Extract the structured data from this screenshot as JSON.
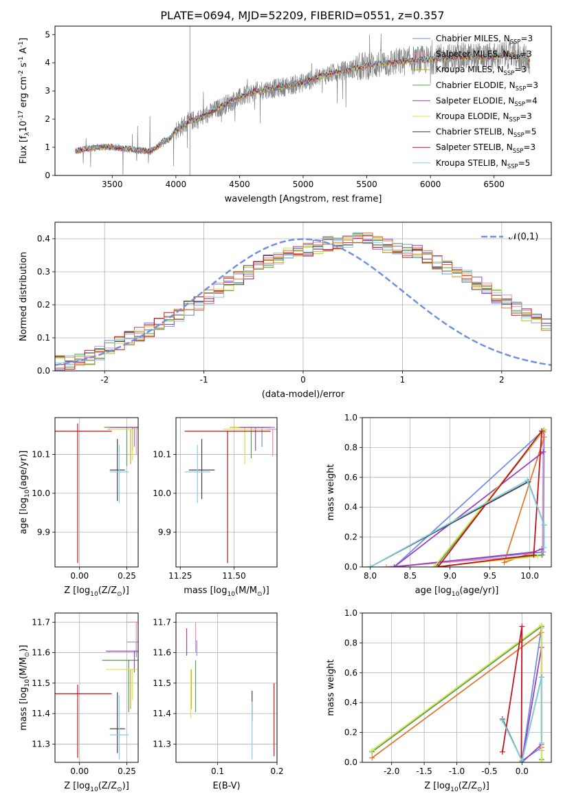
{
  "title": "PLATE=0694, MJD=52209, FIBERID=0551, z=0.357",
  "colors": {
    "Chabrier MILES": "#6f8fe0",
    "Salpeter MILES": "#f08ab0",
    "Kroupa MILES": "#c8b400",
    "Chabrier ELODIE": "#5a9a5a",
    "Salpeter ELODIE": "#9b40c0",
    "Kroupa ELODIE": "#d8e64a",
    "Chabrier STELIB": "#404040",
    "Salpeter STELIB": "#c01020",
    "Kroupa STELIB": "#7fd0e0",
    "orange": "#e07830",
    "gray": "#808080",
    "grid": "#b0b0b0"
  },
  "chart_data": [
    {
      "id": "spectrum",
      "type": "line",
      "xlabel": "wavelength [Angstrom, rest frame]",
      "ylabel": "Flux [f$_\\lambda$10$^{-17}$ erg cm$^{-2}$ s$^{-1}$ A$^{-1}$]",
      "xlim": [
        3050,
        6950
      ],
      "ylim": [
        0,
        5.3
      ],
      "xticks": [
        3500,
        4000,
        4500,
        5000,
        5500,
        6000,
        6500
      ],
      "yticks": [
        0,
        1,
        2,
        3,
        4,
        5
      ],
      "grid": false,
      "legend_position": "upper right",
      "legend": [
        {
          "label": "Chabrier MILES, N$_{SSP}$=3",
          "color_key": "Chabrier MILES"
        },
        {
          "label": "Salpeter MILES, N$_{SSP}$=3",
          "color_key": "Salpeter MILES"
        },
        {
          "label": "Kroupa MILES, N$_{SSP}$=3",
          "color_key": "Kroupa MILES"
        },
        {
          "label": "Chabrier ELODIE, N$_{SSP}$=3",
          "color_key": "Chabrier ELODIE"
        },
        {
          "label": "Salpeter ELODIE, N$_{SSP}$=4",
          "color_key": "Salpeter ELODIE"
        },
        {
          "label": "Kroupa ELODIE, N$_{SSP}$=3",
          "color_key": "Kroupa ELODIE"
        },
        {
          "label": "Chabrier STELIB, N$_{SSP}$=5",
          "color_key": "Chabrier STELIB"
        },
        {
          "label": "Salpeter STELIB, N$_{SSP}$=3",
          "color_key": "Salpeter STELIB"
        },
        {
          "label": "Kroupa STELIB, N$_{SSP}$=5",
          "color_key": "Kroupa STELIB"
        }
      ],
      "continuum": {
        "x": [
          3210,
          3300,
          3400,
          3500,
          3600,
          3700,
          3800,
          3850,
          3900,
          3950,
          4000,
          4100,
          4200,
          4300,
          4400,
          4500,
          4600,
          4700,
          4800,
          4900,
          5000,
          5100,
          5200,
          5300,
          5400,
          5500,
          5600,
          5700,
          5800,
          5900,
          6000,
          6100,
          6200,
          6300,
          6400,
          6500,
          6600,
          6700,
          6780
        ],
        "y": [
          0.85,
          0.95,
          1.0,
          1.0,
          0.95,
          0.9,
          0.85,
          1.0,
          1.2,
          1.3,
          1.6,
          1.9,
          2.05,
          2.3,
          2.55,
          2.75,
          2.95,
          3.05,
          3.1,
          3.2,
          3.3,
          3.45,
          3.6,
          3.7,
          3.8,
          3.9,
          3.95,
          4.0,
          4.05,
          4.1,
          4.1,
          4.15,
          4.2,
          4.2,
          4.2,
          4.2,
          4.3,
          4.2,
          4.1
        ]
      }
    },
    {
      "id": "residuals",
      "type": "histogram",
      "xlabel": "(data-model)/error",
      "ylabel": "Normed distribution",
      "xlim": [
        -2.5,
        2.5
      ],
      "ylim": [
        0,
        0.45
      ],
      "xticks": [
        -2,
        -1,
        0,
        1,
        2
      ],
      "yticks": [
        0.0,
        0.1,
        0.2,
        0.3,
        0.4
      ],
      "grid": true,
      "legend_position": "upper right",
      "legend": [
        {
          "label": "$\\mathcal{N}(0,1)$",
          "color_key": "Chabrier MILES"
        }
      ],
      "bin_edges_start": -2.5,
      "bin_width": 0.1,
      "mean_hist": [
        0.025,
        0.025,
        0.03,
        0.04,
        0.055,
        0.07,
        0.085,
        0.1,
        0.11,
        0.125,
        0.14,
        0.155,
        0.17,
        0.19,
        0.205,
        0.225,
        0.245,
        0.265,
        0.28,
        0.3,
        0.315,
        0.33,
        0.345,
        0.355,
        0.36,
        0.37,
        0.375,
        0.385,
        0.39,
        0.395,
        0.4,
        0.395,
        0.39,
        0.38,
        0.375,
        0.365,
        0.36,
        0.345,
        0.33,
        0.315,
        0.3,
        0.285,
        0.265,
        0.245,
        0.225,
        0.21,
        0.19,
        0.17,
        0.155,
        0.14,
        0.125,
        0.11,
        0.095,
        0.085,
        0.075,
        0.065,
        0.058,
        0.05,
        0.045,
        0.04
      ]
    },
    {
      "id": "age_vs_Z",
      "type": "errorbar",
      "xlabel": "Z [log$_{10}$(Z/Z$_\\odot$)]",
      "ylabel": "age  [log$_{10}$(age/yr)]",
      "xlim": [
        -0.13,
        0.31
      ],
      "ylim": [
        9.81,
        10.195
      ],
      "xticks": [
        0.0,
        0.25
      ],
      "xticklabels": [
        "0.00",
        "0.25"
      ],
      "yticks": [
        9.9,
        10.0,
        10.1
      ],
      "grid": true,
      "points": [
        {
          "color_key": "Chabrier MILES",
          "x": 0.29,
          "y": 10.17,
          "xerr": 0.1,
          "yerr": [
            0.05,
            0.0
          ]
        },
        {
          "color_key": "Salpeter MILES",
          "x": 0.3,
          "y": 10.17,
          "xerr": 0.12,
          "yerr": [
            0.07,
            0.0
          ]
        },
        {
          "color_key": "Kroupa MILES",
          "x": 0.27,
          "y": 10.165,
          "xerr": 0.12,
          "yerr": [
            0.09,
            0.0
          ]
        },
        {
          "color_key": "Chabrier ELODIE",
          "x": 0.25,
          "y": 10.17,
          "xerr": 0.12,
          "yerr": [
            0.1,
            0.0
          ]
        },
        {
          "color_key": "Salpeter ELODIE",
          "x": 0.28,
          "y": 10.17,
          "xerr": 0.12,
          "yerr": [
            0.06,
            0.0
          ]
        },
        {
          "color_key": "Kroupa ELODIE",
          "x": 0.28,
          "y": 10.165,
          "xerr": 0.12,
          "yerr": [
            0.08,
            0.0
          ]
        },
        {
          "color_key": "Chabrier STELIB",
          "x": 0.2,
          "y": 10.06,
          "xerr": 0.04,
          "yerr": [
            0.08,
            0.08
          ]
        },
        {
          "color_key": "Salpeter STELIB",
          "x": -0.01,
          "y": 10.16,
          "xerr": 0.18,
          "yerr": [
            0.34,
            0.02
          ]
        },
        {
          "color_key": "Kroupa STELIB",
          "x": 0.21,
          "y": 10.055,
          "xerr": 0.05,
          "yerr": [
            0.08,
            0.07
          ]
        }
      ]
    },
    {
      "id": "age_vs_mass",
      "type": "errorbar",
      "xlabel": "mass [log$_{10}$(M/M$_\\odot$)]",
      "ylabel": "",
      "xlim": [
        11.23,
        11.7
      ],
      "ylim": [
        9.81,
        10.195
      ],
      "xticks": [
        11.25,
        11.5
      ],
      "xticklabels": [
        "11.25",
        "11.50"
      ],
      "yticks": [
        9.9,
        10.0,
        10.1
      ],
      "grid": true,
      "points": [
        {
          "color_key": "Chabrier MILES",
          "x": 11.63,
          "y": 10.17,
          "xerr": 0.06,
          "yerr": [
            0.05,
            0.0
          ]
        },
        {
          "color_key": "Salpeter MILES",
          "x": 11.68,
          "y": 10.165,
          "xerr": 0.1,
          "yerr": [
            0.07,
            0.0
          ]
        },
        {
          "color_key": "Kroupa MILES",
          "x": 11.55,
          "y": 10.17,
          "xerr": 0.07,
          "yerr": [
            0.07,
            0.0
          ]
        },
        {
          "color_key": "Chabrier ELODIE",
          "x": 11.58,
          "y": 10.17,
          "xerr": 0.06,
          "yerr": [
            0.08,
            0.0
          ]
        },
        {
          "color_key": "Salpeter ELODIE",
          "x": 11.6,
          "y": 10.17,
          "xerr": 0.07,
          "yerr": [
            0.06,
            0.0
          ]
        },
        {
          "color_key": "Kroupa ELODIE",
          "x": 11.55,
          "y": 10.165,
          "xerr": 0.1,
          "yerr": [
            0.09,
            0.0
          ]
        },
        {
          "color_key": "Chabrier STELIB",
          "x": 11.35,
          "y": 10.06,
          "xerr": 0.06,
          "yerr": [
            0.075,
            0.08
          ]
        },
        {
          "color_key": "Salpeter STELIB",
          "x": 11.47,
          "y": 10.16,
          "xerr": 0.2,
          "yerr": [
            0.34,
            0.0
          ]
        },
        {
          "color_key": "Kroupa STELIB",
          "x": 11.33,
          "y": 10.055,
          "xerr": 0.06,
          "yerr": [
            0.08,
            0.07
          ]
        }
      ]
    },
    {
      "id": "weight_vs_age",
      "type": "line",
      "xlabel": "age  [log$_{10}$(age/yr)]",
      "ylabel": "mass weight",
      "xlim": [
        7.9,
        10.27
      ],
      "ylim": [
        0,
        1.0
      ],
      "xticks": [
        8.0,
        8.5,
        9.0,
        9.5,
        10.0
      ],
      "yticks": [
        0.0,
        0.2,
        0.4,
        0.6,
        0.8,
        1.0
      ],
      "grid": true,
      "series": [
        {
          "color_key": "Chabrier MILES",
          "x": [
            10.18,
            10.17,
            8.3,
            10.18
          ],
          "y": [
            0.92,
            0.1,
            0.0,
            0.92
          ]
        },
        {
          "color_key": "Salpeter MILES",
          "x": [
            10.17,
            10.16,
            8.2
          ],
          "y": [
            0.9,
            0.08,
            0.0
          ]
        },
        {
          "color_key": "orange",
          "x": [
            10.18,
            9.68,
            10.05
          ],
          "y": [
            0.87,
            0.03,
            0.1
          ]
        },
        {
          "color_key": "Chabrier ELODIE",
          "x": [
            10.17,
            8.82,
            10.15
          ],
          "y": [
            0.91,
            0.0,
            0.08
          ]
        },
        {
          "color_key": "Salpeter ELODIE",
          "x": [
            10.17,
            8.3,
            10.05,
            10.15
          ],
          "y": [
            0.77,
            0.0,
            0.1,
            0.12
          ]
        },
        {
          "color_key": "Kroupa ELODIE",
          "x": [
            10.18,
            8.8,
            10.1
          ],
          "y": [
            0.92,
            0.0,
            0.07
          ]
        },
        {
          "color_key": "Chabrier STELIB",
          "x": [
            8.0,
            9.98,
            10.18
          ],
          "y": [
            0.0,
            0.57,
            0.28
          ]
        },
        {
          "color_key": "Salpeter STELIB",
          "x": [
            10.15,
            10.05,
            8.85,
            10.15
          ],
          "y": [
            0.91,
            0.08,
            0.0,
            0.91
          ]
        },
        {
          "color_key": "Kroupa STELIB",
          "x": [
            8.0,
            9.97,
            10.18,
            10.18
          ],
          "y": [
            0.0,
            0.58,
            0.28,
            0.13
          ]
        }
      ]
    },
    {
      "id": "mass_vs_Z",
      "type": "errorbar",
      "xlabel": "Z [log$_{10}$(Z/Z$_\\odot$)]",
      "ylabel": "mass [log$_{10}$(M/M$_\\odot$)]",
      "xlim": [
        -0.13,
        0.31
      ],
      "ylim": [
        11.24,
        11.73
      ],
      "xticks": [
        0.0,
        0.25
      ],
      "xticklabels": [
        "0.00",
        "0.25"
      ],
      "yticks": [
        11.3,
        11.4,
        11.5,
        11.6,
        11.7
      ],
      "grid": true,
      "points": [
        {
          "color_key": "Chabrier MILES",
          "x": 0.3,
          "y": 11.635,
          "xerr": 0.05,
          "yerr": [
            0.05,
            0.0
          ]
        },
        {
          "color_key": "Salpeter MILES",
          "x": 0.3,
          "y": 11.7,
          "xerr": 0.05,
          "yerr": [
            0.1,
            0.0
          ]
        },
        {
          "color_key": "Kroupa MILES",
          "x": 0.27,
          "y": 11.545,
          "xerr": 0.03,
          "yerr": [
            0.13,
            0.0
          ]
        },
        {
          "color_key": "Chabrier ELODIE",
          "x": 0.26,
          "y": 11.575,
          "xerr": 0.14,
          "yerr": [
            0.17,
            0.0
          ]
        },
        {
          "color_key": "Salpeter ELODIE",
          "x": 0.29,
          "y": 11.605,
          "xerr": 0.15,
          "yerr": [
            0.07,
            0.0
          ]
        },
        {
          "color_key": "Kroupa ELODIE",
          "x": 0.28,
          "y": 11.545,
          "xerr": 0.14,
          "yerr": [
            0.1,
            0.0
          ]
        },
        {
          "color_key": "Chabrier STELIB",
          "x": 0.2,
          "y": 11.35,
          "xerr": 0.04,
          "yerr": [
            0.08,
            0.12
          ]
        },
        {
          "color_key": "Salpeter STELIB",
          "x": -0.01,
          "y": 11.465,
          "xerr": 0.18,
          "yerr": [
            0.21,
            0.03
          ]
        },
        {
          "color_key": "Kroupa STELIB",
          "x": 0.21,
          "y": 11.33,
          "xerr": 0.05,
          "yerr": [
            0.08,
            0.13
          ]
        }
      ]
    },
    {
      "id": "mass_vs_EBV",
      "type": "errorbar",
      "xlabel": "E(B-V)",
      "ylabel": "",
      "xlim": [
        0.03,
        0.2
      ],
      "ylim": [
        11.24,
        11.73
      ],
      "xticks": [
        0.1,
        0.2
      ],
      "xticklabels": [
        "0.1",
        "0.2"
      ],
      "yticks": [
        11.3,
        11.4,
        11.5,
        11.6,
        11.7
      ],
      "grid": true,
      "points": [
        {
          "color_key": "Chabrier MILES",
          "x": 0.065,
          "y": 11.64,
          "xerr": 0.0,
          "yerr": [
            0.05,
            0.0
          ]
        },
        {
          "color_key": "Salpeter MILES",
          "x": 0.063,
          "y": 11.7,
          "xerr": 0.0,
          "yerr": [
            0.1,
            0.0
          ]
        },
        {
          "color_key": "Kroupa MILES",
          "x": 0.056,
          "y": 11.545,
          "xerr": 0.0,
          "yerr": [
            0.13,
            0.0
          ]
        },
        {
          "color_key": "Chabrier ELODIE",
          "x": 0.063,
          "y": 11.575,
          "xerr": 0.0,
          "yerr": [
            0.17,
            0.0
          ]
        },
        {
          "color_key": "Salpeter ELODIE",
          "x": 0.048,
          "y": 11.68,
          "xerr": 0.0,
          "yerr": [
            0.09,
            0.0
          ]
        },
        {
          "color_key": "Kroupa ELODIE",
          "x": 0.055,
          "y": 11.545,
          "xerr": 0.0,
          "yerr": [
            0.16,
            0.0
          ]
        },
        {
          "color_key": "Chabrier STELIB",
          "x": 0.158,
          "y": 11.475,
          "xerr": 0.0,
          "yerr": [
            0.1,
            0.0
          ]
        },
        {
          "color_key": "Salpeter STELIB",
          "x": 0.195,
          "y": 11.5,
          "xerr": 0.0,
          "yerr": [
            0.24,
            0.0
          ]
        },
        {
          "color_key": "Kroupa STELIB",
          "x": 0.158,
          "y": 11.44,
          "xerr": 0.0,
          "yerr": [
            0.19,
            0.0
          ]
        }
      ]
    },
    {
      "id": "weight_vs_Z",
      "type": "line",
      "xlabel": "Z [log$_{10}$(Z/Z$_\\odot$)]",
      "ylabel": "mass weight",
      "xlim": [
        -2.45,
        0.45
      ],
      "ylim": [
        0,
        1.0
      ],
      "xticks": [
        -2.0,
        -1.5,
        -1.0,
        -0.5,
        0.0
      ],
      "yticks": [
        0.0,
        0.2,
        0.4,
        0.6,
        0.8,
        1.0
      ],
      "grid": true,
      "series": [
        {
          "color_key": "Chabrier MILES",
          "x": [
            0.3,
            0.0,
            0.3
          ],
          "y": [
            0.91,
            0.01,
            0.1
          ]
        },
        {
          "color_key": "Salpeter MILES",
          "x": [
            0.3,
            0.3
          ],
          "y": [
            0.9,
            0.08
          ]
        },
        {
          "color_key": "orange",
          "x": [
            -2.3,
            0.3,
            0.3
          ],
          "y": [
            0.03,
            0.87,
            0.1
          ]
        },
        {
          "color_key": "Chabrier ELODIE",
          "x": [
            -2.3,
            0.3,
            0.3
          ],
          "y": [
            0.07,
            0.91,
            0.02
          ]
        },
        {
          "color_key": "Salpeter ELODIE",
          "x": [
            0.3,
            0.0,
            0.3
          ],
          "y": [
            0.77,
            0.0,
            0.12
          ]
        },
        {
          "color_key": "Kroupa ELODIE",
          "x": [
            -2.3,
            0.3,
            0.3
          ],
          "y": [
            0.08,
            0.92,
            0.01
          ]
        },
        {
          "color_key": "Chabrier STELIB",
          "x": [
            -0.3,
            0.0,
            0.3
          ],
          "y": [
            0.29,
            0.01,
            0.57
          ]
        },
        {
          "color_key": "Salpeter STELIB",
          "x": [
            -0.3,
            0.0,
            -0.01
          ],
          "y": [
            0.07,
            0.91,
            0.0
          ]
        },
        {
          "color_key": "Kroupa STELIB",
          "x": [
            -0.3,
            0.0,
            0.3,
            0.3
          ],
          "y": [
            0.28,
            0.01,
            0.57,
            0.13
          ]
        }
      ]
    }
  ]
}
